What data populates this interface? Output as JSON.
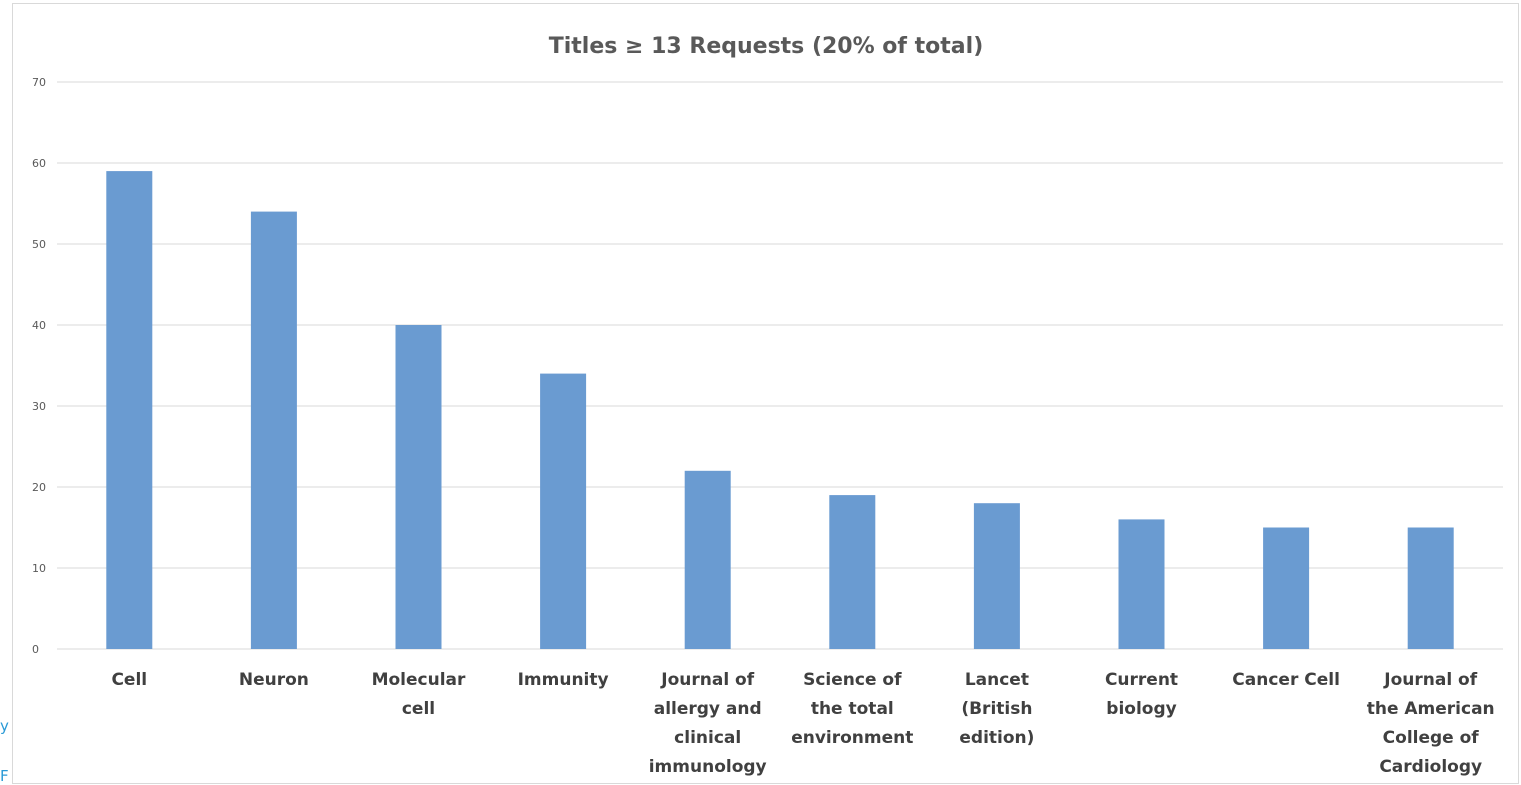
{
  "edge_fragments": [
    "y",
    "F"
  ],
  "chart_data": {
    "type": "bar",
    "title": "Titles ≥ 13 Requests (20% of total)",
    "xlabel": "",
    "ylabel": "",
    "ylim": [
      0,
      70
    ],
    "yticks": [
      0,
      10,
      20,
      30,
      40,
      50,
      60,
      70
    ],
    "grid": true,
    "legend": "none",
    "bar_color": "#6a9bd1",
    "categories": [
      [
        "Cell"
      ],
      [
        "Neuron"
      ],
      [
        "Molecular",
        "cell"
      ],
      [
        "Immunity"
      ],
      [
        "Journal of",
        "allergy and",
        "clinical",
        "immunology"
      ],
      [
        "Science of",
        "the total",
        "environment"
      ],
      [
        "Lancet",
        "(British",
        "edition)"
      ],
      [
        "Current",
        "biology"
      ],
      [
        "Cancer Cell"
      ],
      [
        "Journal of",
        "the American",
        "College of",
        "Cardiology"
      ]
    ],
    "values": [
      59,
      54,
      40,
      34,
      22,
      19,
      18,
      16,
      15,
      15
    ]
  }
}
